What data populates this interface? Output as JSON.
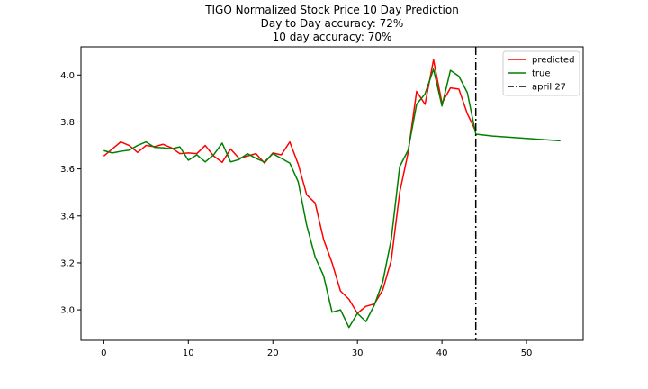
{
  "chart_data": {
    "type": "line",
    "title": "TIGO Normalized Stock Price 10 Day Prediction",
    "subtitle": [
      "Day to Day accuracy: 72%",
      "10 day accuracy: 70%"
    ],
    "xlabel": "",
    "ylabel": "",
    "xlim": [
      -2.7,
      56.7
    ],
    "ylim": [
      2.87,
      4.12
    ],
    "xticks": [
      0,
      10,
      20,
      30,
      40,
      50
    ],
    "yticks": [
      3.0,
      3.2,
      3.4,
      3.6,
      3.8,
      4.0
    ],
    "ytick_labels": [
      "3.0",
      "3.2",
      "3.4",
      "3.6",
      "3.8",
      "4.0"
    ],
    "grid": false,
    "legend_position": "top-right",
    "series": [
      {
        "name": "predicted",
        "color": "#ff0000",
        "style": "solid",
        "x": [
          0,
          1,
          2,
          3,
          4,
          5,
          6,
          7,
          8,
          9,
          10,
          11,
          12,
          13,
          14,
          15,
          16,
          17,
          18,
          19,
          20,
          21,
          22,
          23,
          24,
          25,
          26,
          27,
          28,
          29,
          30,
          31,
          32,
          33,
          34,
          35,
          36,
          37,
          38,
          39,
          40,
          41,
          42,
          43,
          44
        ],
        "y": [
          3.655,
          3.685,
          3.715,
          3.7,
          3.67,
          3.7,
          3.695,
          3.705,
          3.69,
          3.665,
          3.668,
          3.665,
          3.7,
          3.655,
          3.628,
          3.685,
          3.645,
          3.655,
          3.665,
          3.625,
          3.668,
          3.66,
          3.715,
          3.62,
          3.49,
          3.455,
          3.3,
          3.2,
          3.08,
          3.045,
          2.985,
          3.015,
          3.025,
          3.085,
          3.21,
          3.5,
          3.67,
          3.93,
          3.875,
          4.065,
          3.88,
          3.945,
          3.94,
          3.835,
          3.76
        ]
      },
      {
        "name": "true",
        "color": "#008000",
        "style": "solid",
        "x": [
          0,
          1,
          2,
          3,
          4,
          5,
          6,
          7,
          8,
          9,
          10,
          11,
          12,
          13,
          14,
          15,
          16,
          17,
          18,
          19,
          20,
          21,
          22,
          23,
          24,
          25,
          26,
          27,
          28,
          29,
          30,
          31,
          32,
          33,
          34,
          35,
          36,
          37,
          38,
          39,
          40,
          41,
          42,
          43,
          44,
          46,
          54
        ],
        "y": [
          3.678,
          3.668,
          3.675,
          3.68,
          3.7,
          3.715,
          3.692,
          3.69,
          3.686,
          3.694,
          3.637,
          3.66,
          3.63,
          3.66,
          3.71,
          3.63,
          3.64,
          3.665,
          3.645,
          3.63,
          3.665,
          3.645,
          3.625,
          3.545,
          3.36,
          3.225,
          3.145,
          2.99,
          3.0,
          2.925,
          2.985,
          2.95,
          3.02,
          3.12,
          3.3,
          3.61,
          3.68,
          3.875,
          3.92,
          4.025,
          3.868,
          4.02,
          3.995,
          3.925,
          3.748,
          3.74,
          3.72
        ]
      }
    ],
    "vline": {
      "name": "april 27",
      "x": 44,
      "color": "#000000",
      "style": "dashdot"
    }
  }
}
